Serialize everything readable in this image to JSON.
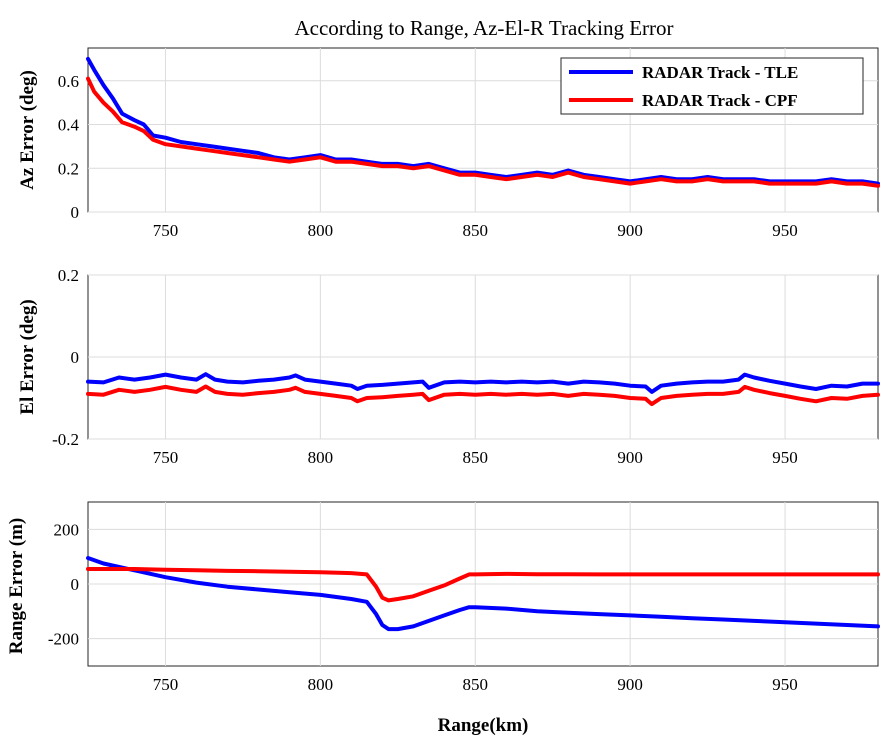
{
  "title": "According to Range, Az-El-R Tracking Error",
  "colors": {
    "tle": "#0000ff",
    "cpf": "#ff0000"
  },
  "chart_data": [
    {
      "type": "line",
      "id": "az",
      "ylabel": "Az Error (deg)",
      "xlabel": "",
      "xlim": [
        725,
        980
      ],
      "ylim": [
        0,
        0.75
      ],
      "xticks": [
        750,
        800,
        850,
        900,
        950
      ],
      "yticks": [
        0,
        0.2,
        0.4,
        0.6
      ],
      "ytick_labels": [
        "0",
        "0.2",
        "0.4",
        "0.6"
      ],
      "grid": true,
      "legend": "top-right",
      "series": [
        {
          "name": "RADAR Track - TLE",
          "color": "#0000ff",
          "x": [
            725,
            727,
            730,
            733,
            736,
            740,
            743,
            746,
            750,
            755,
            760,
            765,
            770,
            775,
            780,
            785,
            790,
            795,
            800,
            805,
            810,
            815,
            820,
            825,
            830,
            835,
            840,
            845,
            850,
            855,
            860,
            865,
            870,
            875,
            880,
            885,
            890,
            895,
            900,
            905,
            910,
            915,
            920,
            925,
            930,
            935,
            940,
            945,
            950,
            955,
            960,
            965,
            970,
            975,
            980
          ],
          "y": [
            0.7,
            0.65,
            0.58,
            0.52,
            0.45,
            0.42,
            0.4,
            0.35,
            0.34,
            0.32,
            0.31,
            0.3,
            0.29,
            0.28,
            0.27,
            0.25,
            0.24,
            0.25,
            0.26,
            0.24,
            0.24,
            0.23,
            0.22,
            0.22,
            0.21,
            0.22,
            0.2,
            0.18,
            0.18,
            0.17,
            0.16,
            0.17,
            0.18,
            0.17,
            0.19,
            0.17,
            0.16,
            0.15,
            0.14,
            0.15,
            0.16,
            0.15,
            0.15,
            0.16,
            0.15,
            0.15,
            0.15,
            0.14,
            0.14,
            0.14,
            0.14,
            0.15,
            0.14,
            0.14,
            0.13
          ]
        },
        {
          "name": "RADAR Track - CPF",
          "color": "#ff0000",
          "x": [
            725,
            727,
            730,
            733,
            736,
            740,
            743,
            746,
            750,
            755,
            760,
            765,
            770,
            775,
            780,
            785,
            790,
            795,
            800,
            805,
            810,
            815,
            820,
            825,
            830,
            835,
            840,
            845,
            850,
            855,
            860,
            865,
            870,
            875,
            880,
            885,
            890,
            895,
            900,
            905,
            910,
            915,
            920,
            925,
            930,
            935,
            940,
            945,
            950,
            955,
            960,
            965,
            970,
            975,
            980
          ],
          "y": [
            0.61,
            0.55,
            0.5,
            0.46,
            0.41,
            0.39,
            0.37,
            0.33,
            0.31,
            0.3,
            0.29,
            0.28,
            0.27,
            0.26,
            0.25,
            0.24,
            0.23,
            0.24,
            0.25,
            0.23,
            0.23,
            0.22,
            0.21,
            0.21,
            0.2,
            0.21,
            0.19,
            0.17,
            0.17,
            0.16,
            0.15,
            0.16,
            0.17,
            0.16,
            0.18,
            0.16,
            0.15,
            0.14,
            0.13,
            0.14,
            0.15,
            0.14,
            0.14,
            0.15,
            0.14,
            0.14,
            0.14,
            0.13,
            0.13,
            0.13,
            0.13,
            0.14,
            0.13,
            0.13,
            0.12
          ]
        }
      ]
    },
    {
      "type": "line",
      "id": "el",
      "ylabel": "El Error (deg)",
      "xlabel": "",
      "xlim": [
        725,
        980
      ],
      "ylim": [
        -0.2,
        0.2
      ],
      "xticks": [
        750,
        800,
        850,
        900,
        950
      ],
      "yticks": [
        -0.2,
        0,
        0.2
      ],
      "ytick_labels": [
        "-0.2",
        "0",
        "0.2"
      ],
      "grid": true,
      "series": [
        {
          "name": "RADAR Track - TLE",
          "color": "#0000ff",
          "x": [
            725,
            730,
            735,
            740,
            745,
            750,
            755,
            760,
            763,
            766,
            770,
            775,
            780,
            785,
            790,
            792,
            795,
            800,
            805,
            810,
            812,
            815,
            820,
            825,
            830,
            833,
            835,
            840,
            845,
            850,
            855,
            860,
            865,
            870,
            875,
            880,
            885,
            890,
            895,
            900,
            905,
            907,
            910,
            915,
            920,
            925,
            930,
            935,
            937,
            940,
            945,
            950,
            955,
            960,
            965,
            970,
            975,
            980
          ],
          "y": [
            -0.06,
            -0.062,
            -0.05,
            -0.055,
            -0.05,
            -0.043,
            -0.05,
            -0.055,
            -0.042,
            -0.055,
            -0.06,
            -0.062,
            -0.058,
            -0.055,
            -0.05,
            -0.045,
            -0.055,
            -0.06,
            -0.065,
            -0.07,
            -0.078,
            -0.07,
            -0.068,
            -0.065,
            -0.062,
            -0.06,
            -0.075,
            -0.062,
            -0.06,
            -0.062,
            -0.06,
            -0.062,
            -0.06,
            -0.062,
            -0.06,
            -0.065,
            -0.06,
            -0.062,
            -0.065,
            -0.07,
            -0.072,
            -0.085,
            -0.07,
            -0.065,
            -0.062,
            -0.06,
            -0.06,
            -0.055,
            -0.043,
            -0.05,
            -0.058,
            -0.065,
            -0.072,
            -0.078,
            -0.07,
            -0.072,
            -0.065,
            -0.065
          ]
        },
        {
          "name": "RADAR Track - CPF",
          "color": "#ff0000",
          "x": [
            725,
            730,
            735,
            740,
            745,
            750,
            755,
            760,
            763,
            766,
            770,
            775,
            780,
            785,
            790,
            792,
            795,
            800,
            805,
            810,
            812,
            815,
            820,
            825,
            830,
            833,
            835,
            840,
            845,
            850,
            855,
            860,
            865,
            870,
            875,
            880,
            885,
            890,
            895,
            900,
            905,
            907,
            910,
            915,
            920,
            925,
            930,
            935,
            937,
            940,
            945,
            950,
            955,
            960,
            965,
            970,
            975,
            980
          ],
          "y": [
            -0.09,
            -0.092,
            -0.08,
            -0.085,
            -0.08,
            -0.073,
            -0.08,
            -0.085,
            -0.072,
            -0.085,
            -0.09,
            -0.092,
            -0.088,
            -0.085,
            -0.08,
            -0.075,
            -0.085,
            -0.09,
            -0.095,
            -0.1,
            -0.108,
            -0.1,
            -0.098,
            -0.095,
            -0.092,
            -0.09,
            -0.105,
            -0.092,
            -0.09,
            -0.092,
            -0.09,
            -0.092,
            -0.09,
            -0.092,
            -0.09,
            -0.095,
            -0.09,
            -0.092,
            -0.095,
            -0.1,
            -0.102,
            -0.115,
            -0.1,
            -0.095,
            -0.092,
            -0.09,
            -0.09,
            -0.085,
            -0.073,
            -0.08,
            -0.088,
            -0.095,
            -0.102,
            -0.108,
            -0.1,
            -0.102,
            -0.095,
            -0.092
          ]
        }
      ]
    },
    {
      "type": "line",
      "id": "range",
      "ylabel": "Range Error (m)",
      "xlabel": "Range(km)",
      "xlim": [
        725,
        980
      ],
      "ylim": [
        -300,
        300
      ],
      "xticks": [
        750,
        800,
        850,
        900,
        950
      ],
      "yticks": [
        -200,
        0,
        200
      ],
      "ytick_labels": [
        "-200",
        "0",
        "200"
      ],
      "grid": true,
      "series": [
        {
          "name": "RADAR Track - TLE",
          "color": "#0000ff",
          "x": [
            725,
            730,
            740,
            750,
            760,
            770,
            780,
            790,
            800,
            810,
            815,
            818,
            820,
            822,
            825,
            830,
            835,
            840,
            845,
            848,
            850,
            860,
            870,
            880,
            890,
            900,
            910,
            920,
            930,
            940,
            950,
            960,
            970,
            980
          ],
          "y": [
            95,
            75,
            50,
            25,
            5,
            -10,
            -20,
            -30,
            -40,
            -55,
            -65,
            -110,
            -150,
            -165,
            -165,
            -155,
            -135,
            -115,
            -95,
            -85,
            -85,
            -90,
            -100,
            -105,
            -110,
            -115,
            -120,
            -125,
            -130,
            -135,
            -140,
            -145,
            -150,
            -155
          ]
        },
        {
          "name": "RADAR Track - CPF",
          "color": "#ff0000",
          "x": [
            725,
            730,
            740,
            750,
            760,
            770,
            780,
            790,
            800,
            810,
            815,
            818,
            820,
            822,
            825,
            830,
            835,
            840,
            845,
            848,
            850,
            860,
            870,
            880,
            890,
            900,
            910,
            920,
            930,
            940,
            950,
            960,
            970,
            980
          ],
          "y": [
            55,
            55,
            55,
            52,
            50,
            48,
            47,
            45,
            43,
            40,
            35,
            -10,
            -50,
            -60,
            -55,
            -45,
            -25,
            -5,
            20,
            35,
            35,
            37,
            36,
            36,
            35,
            35,
            35,
            35,
            35,
            35,
            35,
            35,
            35,
            35
          ]
        }
      ]
    }
  ]
}
